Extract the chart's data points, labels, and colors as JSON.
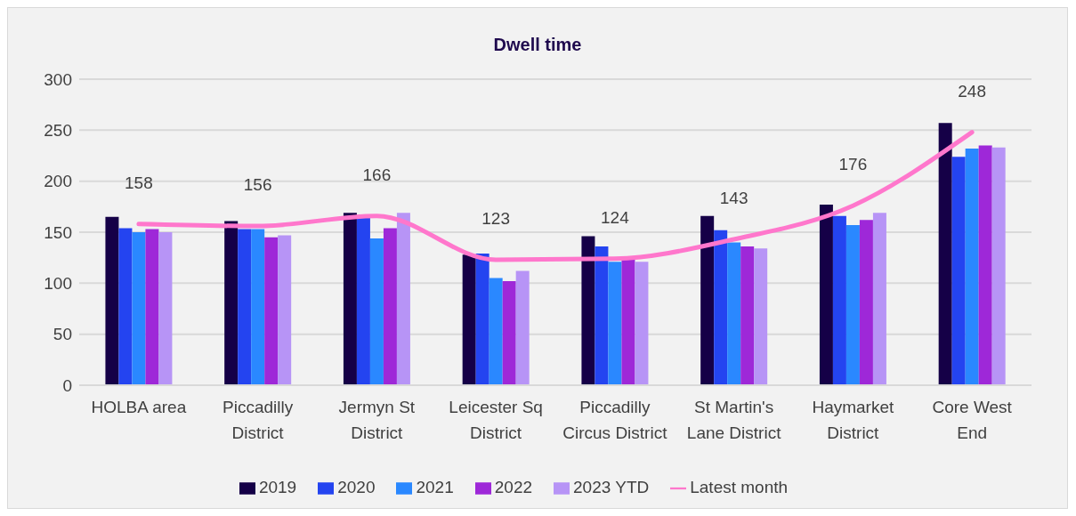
{
  "chart_data": {
    "type": "bar",
    "title": "Dwell time",
    "categories": [
      "HOLBA area",
      "Piccadilly District",
      "Jermyn St District",
      "Leicester Sq District",
      "Piccadilly Circus District",
      "St Martin's Lane District",
      "Haymarket District",
      "Core West End"
    ],
    "series": [
      {
        "name": "2019",
        "color": "#150047",
        "values": [
          165,
          161,
          169,
          128,
          146,
          166,
          177,
          257
        ]
      },
      {
        "name": "2020",
        "color": "#2444f0",
        "values": [
          154,
          153,
          164,
          129,
          136,
          152,
          166,
          224
        ]
      },
      {
        "name": "2021",
        "color": "#2a88ff",
        "values": [
          150,
          153,
          144,
          105,
          121,
          140,
          157,
          232
        ]
      },
      {
        "name": "2022",
        "color": "#9e28d8",
        "values": [
          153,
          145,
          154,
          102,
          124,
          136,
          162,
          235
        ]
      },
      {
        "name": "2023 YTD",
        "color": "#b794f6",
        "values": [
          150,
          147,
          169,
          112,
          121,
          134,
          169,
          233
        ]
      },
      {
        "name": "Latest month",
        "type": "line",
        "color": "#ff77cc",
        "values": [
          158,
          156,
          166,
          123,
          124,
          143,
          176,
          248
        ],
        "value_labels": [
          "158",
          "156",
          "166",
          "123",
          "124",
          "143",
          "176",
          "248"
        ]
      }
    ],
    "ylim": [
      0,
      300
    ],
    "yticks": [
      0,
      50,
      100,
      150,
      200,
      250,
      300
    ],
    "grid": "y",
    "legend": "bottom",
    "marker": "none"
  }
}
